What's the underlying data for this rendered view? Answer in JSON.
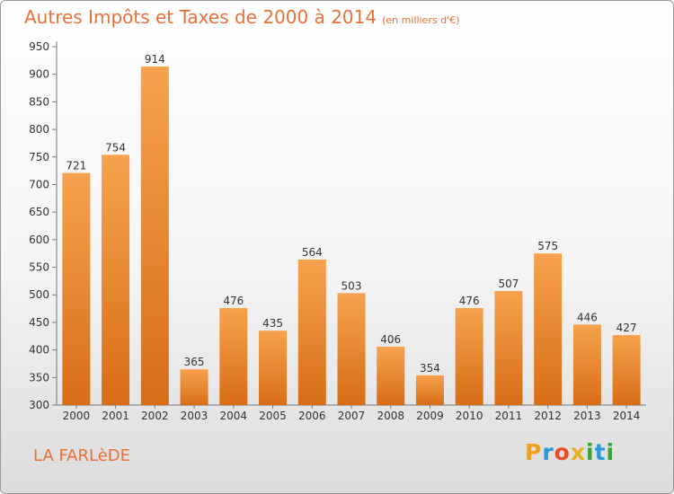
{
  "title": "Autres Impôts et Taxes de 2000 à 2014",
  "subtitle": "(en milliers d'€)",
  "city": "LA FARLèDE",
  "logo": {
    "p": "P",
    "r": "r",
    "o": "o",
    "x": "x",
    "i": "i",
    "t": "t",
    "i2": "i"
  },
  "colors": {
    "bar_top": "#f6a24e",
    "bar_bottom": "#d86d16",
    "text": "#e8703a"
  },
  "chart_data": {
    "type": "bar",
    "categories": [
      "2000",
      "2001",
      "2002",
      "2003",
      "2004",
      "2005",
      "2006",
      "2007",
      "2008",
      "2009",
      "2010",
      "2011",
      "2012",
      "2013",
      "2014"
    ],
    "values": [
      721,
      754,
      914,
      365,
      476,
      435,
      564,
      503,
      406,
      354,
      476,
      507,
      575,
      446,
      427
    ],
    "title": "Autres Impôts et Taxes de 2000 à 2014",
    "subtitle": "(en milliers d'€)",
    "xlabel": "",
    "ylabel": "",
    "ylim": [
      300,
      950
    ],
    "yticks": [
      300,
      350,
      400,
      450,
      500,
      550,
      600,
      650,
      700,
      750,
      800,
      850,
      900,
      950
    ],
    "grid": false,
    "data_labels": true
  }
}
